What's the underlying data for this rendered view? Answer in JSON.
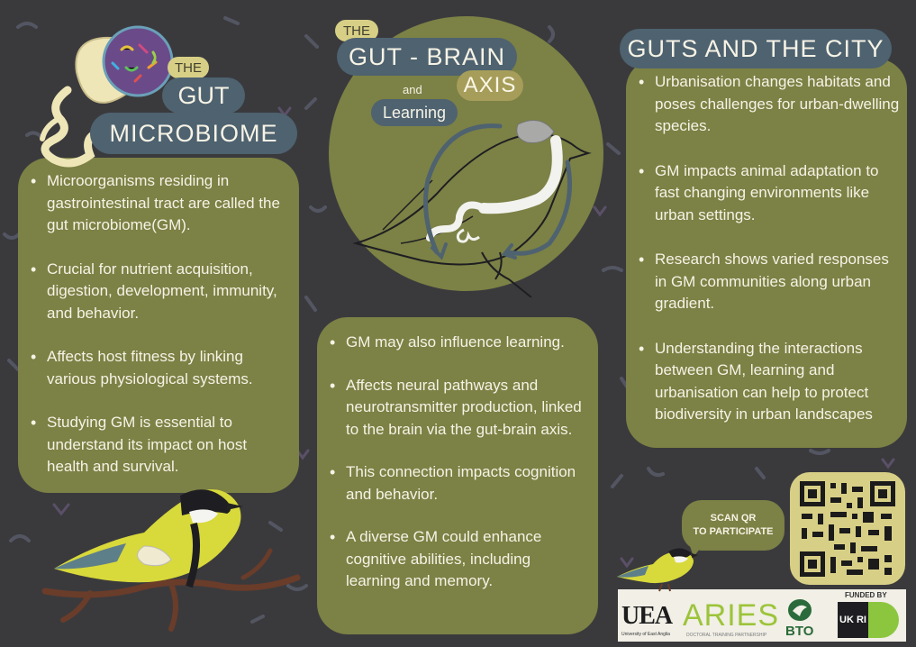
{
  "colors": {
    "background": "#3a3a3d",
    "panel_olive": "#7c8145",
    "pill_slate": "#4e6270",
    "pill_gold": "#a69d5a",
    "pill_cream": "#d8cf86",
    "text_light": "#f6f3e6"
  },
  "left": {
    "title_small": "THE",
    "title_line1": "GUT",
    "title_line2": "MICROBIOME",
    "bullets": [
      "Microorganisms residing in gastrointestinal tract are called the gut microbiome(GM).",
      "Crucial for nutrient acquisition, digestion, development, immunity, and behavior.",
      "Affects host fitness by linking various physiological systems.",
      "Studying GM is essential to understand its impact on host health and survival."
    ]
  },
  "middle": {
    "title_small": "THE",
    "title_main": "GUT - BRAIN",
    "title_axis": "AXIS",
    "title_and": "and",
    "title_learning": "Learning",
    "bullets": [
      "GM may also influence learning.",
      "Affects neural pathways and neurotransmitter production, linked to the brain via the gut-brain axis.",
      "This connection impacts cognition and behavior.",
      "A diverse GM could enhance cognitive abilities, including learning and memory."
    ]
  },
  "right": {
    "title": "GUTS AND THE CITY",
    "bullets": [
      "Urbanisation changes habitats and poses challenges for urban-dwelling species.",
      "GM impacts animal adaptation to fast changing environments like urban settings.",
      "Research shows varied responses in GM communities along urban gradient.",
      "Understanding the interactions between GM, learning and urbanisation can help to protect biodiversity in urban landscapes"
    ]
  },
  "cta": {
    "line1": "SCAN QR",
    "line2": "TO PARTICIPATE"
  },
  "funding": {
    "funded_by": "FUNDED BY",
    "uea": "UEA",
    "uea_sub": "University of East Anglia",
    "aries": "ARIES",
    "aries_sub": "DOCTORAL TRAINING PARTNERSHIP",
    "bto": "BTO",
    "ukri": "UK RI"
  }
}
